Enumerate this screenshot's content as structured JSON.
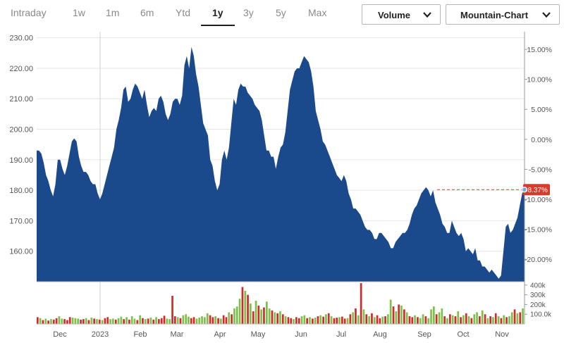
{
  "toolbar": {
    "range_tabs": [
      {
        "label": "Intraday"
      },
      {
        "label": "1w"
      },
      {
        "label": "1m"
      },
      {
        "label": "6m"
      },
      {
        "label": "Ytd"
      },
      {
        "label": "1y",
        "active": true
      },
      {
        "label": "3y"
      },
      {
        "label": "5y"
      },
      {
        "label": "Max"
      }
    ],
    "volume_label": "Volume",
    "chart_type_label": "Mountain-Chart"
  },
  "colors": {
    "area_fill": "#1b4a8c",
    "volume_up": "#7cc24a",
    "volume_down": "#d22a2a",
    "badge": "#d93a2b",
    "grid": "#e6e6e6"
  },
  "chart_data": {
    "type": "area",
    "price_axis": {
      "ticks": [
        "230.00",
        "220.00",
        "210.00",
        "200.00",
        "190.00",
        "180.00",
        "170.00",
        "160.00"
      ],
      "ylim": [
        150,
        232
      ]
    },
    "pct_axis": {
      "ticks": [
        "15.00%",
        "10.00%",
        "5.00%",
        "0.00%",
        "-5.00%",
        "-10.00%",
        "-15.00%",
        "-20.00%"
      ],
      "base_price": 196.7
    },
    "volume_axis": {
      "ticks": [
        "400k",
        "300k",
        "200k",
        "100.0k"
      ],
      "ylim": [
        0,
        420
      ]
    },
    "x_labels": [
      "Dec",
      "2023",
      "Feb",
      "Mar",
      "Apr",
      "May",
      "Jun",
      "Jul",
      "Aug",
      "Sep",
      "Oct",
      "Nov"
    ],
    "current": {
      "label": "-8.37%",
      "price": 180.2
    },
    "price_series": [
      [
        0,
        193
      ],
      [
        1,
        193
      ],
      [
        2,
        192
      ],
      [
        3,
        189
      ],
      [
        4,
        185
      ],
      [
        5,
        183
      ],
      [
        6,
        180
      ],
      [
        7,
        178
      ],
      [
        8,
        182
      ],
      [
        9,
        190
      ],
      [
        10,
        190
      ],
      [
        11,
        187
      ],
      [
        12,
        185
      ],
      [
        13,
        188
      ],
      [
        14,
        192
      ],
      [
        15,
        196
      ],
      [
        16,
        197
      ],
      [
        17,
        196
      ],
      [
        18,
        191
      ],
      [
        19,
        188
      ],
      [
        20,
        186
      ],
      [
        21,
        186
      ],
      [
        22,
        185
      ],
      [
        23,
        183
      ],
      [
        24,
        182
      ],
      [
        25,
        182
      ],
      [
        26,
        179
      ],
      [
        27,
        177
      ],
      [
        28,
        179
      ],
      [
        29,
        182
      ],
      [
        30,
        185
      ],
      [
        31,
        188
      ],
      [
        32,
        191
      ],
      [
        33,
        194
      ],
      [
        34,
        200
      ],
      [
        35,
        203
      ],
      [
        36,
        207
      ],
      [
        37,
        213
      ],
      [
        38,
        214
      ],
      [
        39,
        209
      ],
      [
        40,
        210
      ],
      [
        41,
        213
      ],
      [
        42,
        215
      ],
      [
        43,
        214
      ],
      [
        44,
        212
      ],
      [
        45,
        210
      ],
      [
        46,
        213
      ],
      [
        47,
        208
      ],
      [
        48,
        204
      ],
      [
        49,
        206
      ],
      [
        50,
        207
      ],
      [
        51,
        206
      ],
      [
        52,
        210
      ],
      [
        53,
        211
      ],
      [
        54,
        209
      ],
      [
        55,
        205
      ],
      [
        56,
        203
      ],
      [
        57,
        205
      ],
      [
        58,
        209
      ],
      [
        59,
        210
      ],
      [
        60,
        210
      ],
      [
        61,
        208
      ],
      [
        62,
        211
      ],
      [
        63,
        221
      ],
      [
        64,
        224
      ],
      [
        65,
        220
      ],
      [
        66,
        227
      ],
      [
        67,
        224
      ],
      [
        68,
        218
      ],
      [
        69,
        214
      ],
      [
        70,
        208
      ],
      [
        71,
        202
      ],
      [
        72,
        200
      ],
      [
        73,
        198
      ],
      [
        74,
        190
      ],
      [
        75,
        188
      ],
      [
        76,
        183
      ],
      [
        77,
        180
      ],
      [
        78,
        182
      ],
      [
        79,
        190
      ],
      [
        80,
        193
      ],
      [
        81,
        190
      ],
      [
        82,
        194
      ],
      [
        83,
        202
      ],
      [
        84,
        210
      ],
      [
        85,
        208
      ],
      [
        86,
        213
      ],
      [
        87,
        215
      ],
      [
        88,
        214
      ],
      [
        89,
        214
      ],
      [
        90,
        212
      ],
      [
        91,
        211
      ],
      [
        92,
        210
      ],
      [
        93,
        208
      ],
      [
        94,
        207
      ],
      [
        95,
        206
      ],
      [
        96,
        203
      ],
      [
        97,
        198
      ],
      [
        98,
        193
      ],
      [
        99,
        193
      ],
      [
        100,
        191
      ],
      [
        101,
        191
      ],
      [
        102,
        187
      ],
      [
        103,
        191
      ],
      [
        104,
        194
      ],
      [
        105,
        195
      ],
      [
        106,
        199
      ],
      [
        107,
        206
      ],
      [
        108,
        213
      ],
      [
        109,
        216
      ],
      [
        110,
        219
      ],
      [
        111,
        220
      ],
      [
        112,
        220
      ],
      [
        113,
        222
      ],
      [
        114,
        224
      ],
      [
        115,
        223
      ],
      [
        116,
        222
      ],
      [
        117,
        219
      ],
      [
        118,
        214
      ],
      [
        119,
        206
      ],
      [
        120,
        203
      ],
      [
        121,
        200
      ],
      [
        122,
        196
      ],
      [
        123,
        195
      ],
      [
        124,
        193
      ],
      [
        125,
        191
      ],
      [
        126,
        189
      ],
      [
        127,
        187
      ],
      [
        128,
        185
      ],
      [
        129,
        184
      ],
      [
        130,
        183
      ],
      [
        131,
        185
      ],
      [
        132,
        183
      ],
      [
        133,
        179
      ],
      [
        134,
        177
      ],
      [
        135,
        174
      ],
      [
        136,
        174
      ],
      [
        137,
        173
      ],
      [
        138,
        172
      ],
      [
        139,
        170
      ],
      [
        140,
        168
      ],
      [
        141,
        167
      ],
      [
        142,
        167
      ],
      [
        143,
        166
      ],
      [
        144,
        164
      ],
      [
        145,
        164
      ],
      [
        146,
        166
      ],
      [
        147,
        166
      ],
      [
        148,
        165
      ],
      [
        149,
        164
      ],
      [
        150,
        163
      ],
      [
        151,
        161
      ],
      [
        152,
        161
      ],
      [
        153,
        163
      ],
      [
        154,
        164
      ],
      [
        155,
        165
      ],
      [
        156,
        166
      ],
      [
        157,
        166
      ],
      [
        158,
        167
      ],
      [
        159,
        169
      ],
      [
        160,
        172
      ],
      [
        161,
        174
      ],
      [
        162,
        175
      ],
      [
        163,
        177
      ],
      [
        164,
        179
      ],
      [
        165,
        180
      ],
      [
        166,
        181
      ],
      [
        167,
        180
      ],
      [
        168,
        178
      ],
      [
        169,
        180
      ],
      [
        170,
        176
      ],
      [
        171,
        174
      ],
      [
        172,
        172
      ],
      [
        173,
        169
      ],
      [
        174,
        168
      ],
      [
        175,
        166
      ],
      [
        176,
        166
      ],
      [
        177,
        170
      ],
      [
        178,
        168
      ],
      [
        179,
        166
      ],
      [
        180,
        165
      ],
      [
        181,
        166
      ],
      [
        182,
        164
      ],
      [
        183,
        160
      ],
      [
        184,
        161
      ],
      [
        185,
        160
      ],
      [
        186,
        159
      ],
      [
        187,
        161
      ],
      [
        188,
        157
      ],
      [
        189,
        157
      ],
      [
        190,
        155
      ],
      [
        191,
        155
      ],
      [
        192,
        154
      ],
      [
        193,
        153
      ],
      [
        194,
        154
      ],
      [
        195,
        153
      ],
      [
        196,
        152
      ],
      [
        197,
        151
      ],
      [
        198,
        152
      ],
      [
        199,
        160
      ],
      [
        200,
        168
      ],
      [
        201,
        169
      ],
      [
        202,
        166
      ],
      [
        203,
        167
      ],
      [
        204,
        169
      ],
      [
        205,
        171
      ],
      [
        206,
        175
      ],
      [
        207,
        179
      ],
      [
        208,
        180.2
      ]
    ],
    "volume_series": [
      [
        0,
        70,
        0
      ],
      [
        1,
        60,
        1
      ],
      [
        2,
        40,
        0
      ],
      [
        3,
        55,
        1
      ],
      [
        4,
        35,
        0
      ],
      [
        5,
        50,
        1
      ],
      [
        6,
        45,
        0
      ],
      [
        7,
        60,
        0
      ],
      [
        8,
        80,
        1
      ],
      [
        9,
        55,
        1
      ],
      [
        10,
        50,
        0
      ],
      [
        11,
        40,
        0
      ],
      [
        12,
        70,
        0
      ],
      [
        13,
        65,
        1
      ],
      [
        14,
        60,
        1
      ],
      [
        15,
        55,
        1
      ],
      [
        16,
        45,
        0
      ],
      [
        17,
        50,
        0
      ],
      [
        18,
        60,
        1
      ],
      [
        19,
        40,
        0
      ],
      [
        20,
        65,
        1
      ],
      [
        21,
        55,
        0
      ],
      [
        22,
        50,
        1
      ],
      [
        23,
        45,
        0
      ],
      [
        24,
        40,
        1
      ],
      [
        25,
        60,
        0
      ],
      [
        26,
        70,
        0
      ],
      [
        27,
        50,
        1
      ],
      [
        28,
        55,
        1
      ],
      [
        29,
        45,
        0
      ],
      [
        30,
        60,
        1
      ],
      [
        31,
        75,
        1
      ],
      [
        32,
        50,
        0
      ],
      [
        33,
        70,
        1
      ],
      [
        34,
        45,
        0
      ],
      [
        35,
        80,
        1
      ],
      [
        36,
        55,
        1
      ],
      [
        37,
        40,
        0
      ],
      [
        38,
        90,
        1
      ],
      [
        39,
        60,
        0
      ],
      [
        40,
        50,
        1
      ],
      [
        41,
        55,
        0
      ],
      [
        42,
        65,
        1
      ],
      [
        43,
        45,
        0
      ],
      [
        44,
        70,
        1
      ],
      [
        45,
        50,
        0
      ],
      [
        46,
        60,
        0
      ],
      [
        47,
        85,
        0
      ],
      [
        48,
        55,
        1
      ],
      [
        49,
        50,
        1
      ],
      [
        50,
        290,
        0
      ],
      [
        51,
        80,
        0
      ],
      [
        52,
        70,
        1
      ],
      [
        53,
        60,
        0
      ],
      [
        54,
        90,
        1
      ],
      [
        55,
        100,
        1
      ],
      [
        56,
        75,
        1
      ],
      [
        57,
        60,
        0
      ],
      [
        58,
        70,
        0
      ],
      [
        59,
        55,
        1
      ],
      [
        60,
        65,
        1
      ],
      [
        61,
        80,
        1
      ],
      [
        62,
        70,
        1
      ],
      [
        63,
        110,
        1
      ],
      [
        64,
        90,
        0
      ],
      [
        65,
        70,
        0
      ],
      [
        66,
        80,
        1
      ],
      [
        67,
        60,
        0
      ],
      [
        68,
        55,
        1
      ],
      [
        69,
        90,
        0
      ],
      [
        70,
        70,
        0
      ],
      [
        71,
        120,
        1
      ],
      [
        72,
        100,
        0
      ],
      [
        73,
        160,
        1
      ],
      [
        74,
        180,
        1
      ],
      [
        75,
        260,
        1
      ],
      [
        76,
        380,
        0
      ],
      [
        77,
        340,
        1
      ],
      [
        78,
        300,
        0
      ],
      [
        79,
        210,
        1
      ],
      [
        80,
        130,
        0
      ],
      [
        81,
        240,
        1
      ],
      [
        82,
        190,
        0
      ],
      [
        83,
        150,
        1
      ],
      [
        84,
        170,
        0
      ],
      [
        85,
        230,
        1
      ],
      [
        86,
        160,
        1
      ],
      [
        87,
        140,
        0
      ],
      [
        88,
        120,
        1
      ],
      [
        89,
        110,
        0
      ],
      [
        90,
        130,
        1
      ],
      [
        91,
        100,
        0
      ],
      [
        92,
        80,
        1
      ],
      [
        93,
        70,
        0
      ],
      [
        94,
        60,
        0
      ],
      [
        95,
        50,
        1
      ],
      [
        96,
        70,
        0
      ],
      [
        97,
        60,
        0
      ],
      [
        98,
        80,
        1
      ],
      [
        99,
        90,
        1
      ],
      [
        100,
        60,
        0
      ],
      [
        101,
        70,
        1
      ],
      [
        102,
        55,
        0
      ],
      [
        103,
        65,
        1
      ],
      [
        104,
        80,
        0
      ],
      [
        105,
        90,
        1
      ],
      [
        106,
        75,
        0
      ],
      [
        107,
        100,
        1
      ],
      [
        108,
        110,
        0
      ],
      [
        109,
        80,
        1
      ],
      [
        110,
        60,
        0
      ],
      [
        111,
        65,
        0
      ],
      [
        112,
        70,
        1
      ],
      [
        113,
        75,
        0
      ],
      [
        114,
        55,
        0
      ],
      [
        115,
        60,
        1
      ],
      [
        116,
        100,
        0
      ],
      [
        117,
        120,
        1
      ],
      [
        118,
        160,
        0
      ],
      [
        119,
        90,
        1
      ],
      [
        120,
        420,
        0
      ],
      [
        121,
        150,
        1
      ],
      [
        122,
        100,
        0
      ],
      [
        123,
        80,
        1
      ],
      [
        124,
        110,
        0
      ],
      [
        125,
        70,
        1
      ],
      [
        126,
        90,
        0
      ],
      [
        127,
        60,
        0
      ],
      [
        128,
        75,
        1
      ],
      [
        129,
        80,
        0
      ],
      [
        130,
        100,
        1
      ],
      [
        131,
        250,
        1
      ],
      [
        132,
        180,
        0
      ],
      [
        133,
        130,
        1
      ],
      [
        134,
        200,
        0
      ],
      [
        135,
        190,
        1
      ],
      [
        136,
        150,
        0
      ],
      [
        137,
        120,
        1
      ],
      [
        138,
        80,
        0
      ],
      [
        139,
        70,
        0
      ],
      [
        140,
        90,
        1
      ],
      [
        141,
        70,
        0
      ],
      [
        142,
        60,
        1
      ],
      [
        143,
        100,
        1
      ],
      [
        144,
        80,
        0
      ],
      [
        145,
        60,
        1
      ],
      [
        146,
        150,
        1
      ],
      [
        147,
        180,
        1
      ],
      [
        148,
        100,
        0
      ],
      [
        149,
        120,
        1
      ],
      [
        150,
        160,
        1
      ],
      [
        151,
        80,
        0
      ],
      [
        152,
        60,
        1
      ],
      [
        153,
        100,
        0
      ],
      [
        154,
        90,
        1
      ],
      [
        155,
        80,
        0
      ],
      [
        156,
        130,
        1
      ],
      [
        157,
        70,
        0
      ],
      [
        158,
        90,
        1
      ],
      [
        159,
        110,
        0
      ],
      [
        160,
        80,
        1
      ],
      [
        161,
        60,
        0
      ],
      [
        162,
        100,
        1
      ],
      [
        163,
        120,
        1
      ],
      [
        164,
        80,
        0
      ],
      [
        165,
        140,
        1
      ],
      [
        166,
        100,
        0
      ],
      [
        167,
        60,
        1
      ],
      [
        168,
        80,
        0
      ],
      [
        169,
        70,
        1
      ],
      [
        170,
        110,
        0
      ],
      [
        171,
        80,
        1
      ],
      [
        172,
        60,
        0
      ],
      [
        173,
        90,
        1
      ],
      [
        174,
        70,
        0
      ],
      [
        175,
        80,
        1
      ],
      [
        176,
        120,
        1
      ],
      [
        177,
        150,
        0
      ],
      [
        178,
        110,
        1
      ],
      [
        179,
        120,
        0
      ],
      [
        180,
        160,
        1
      ]
    ]
  }
}
